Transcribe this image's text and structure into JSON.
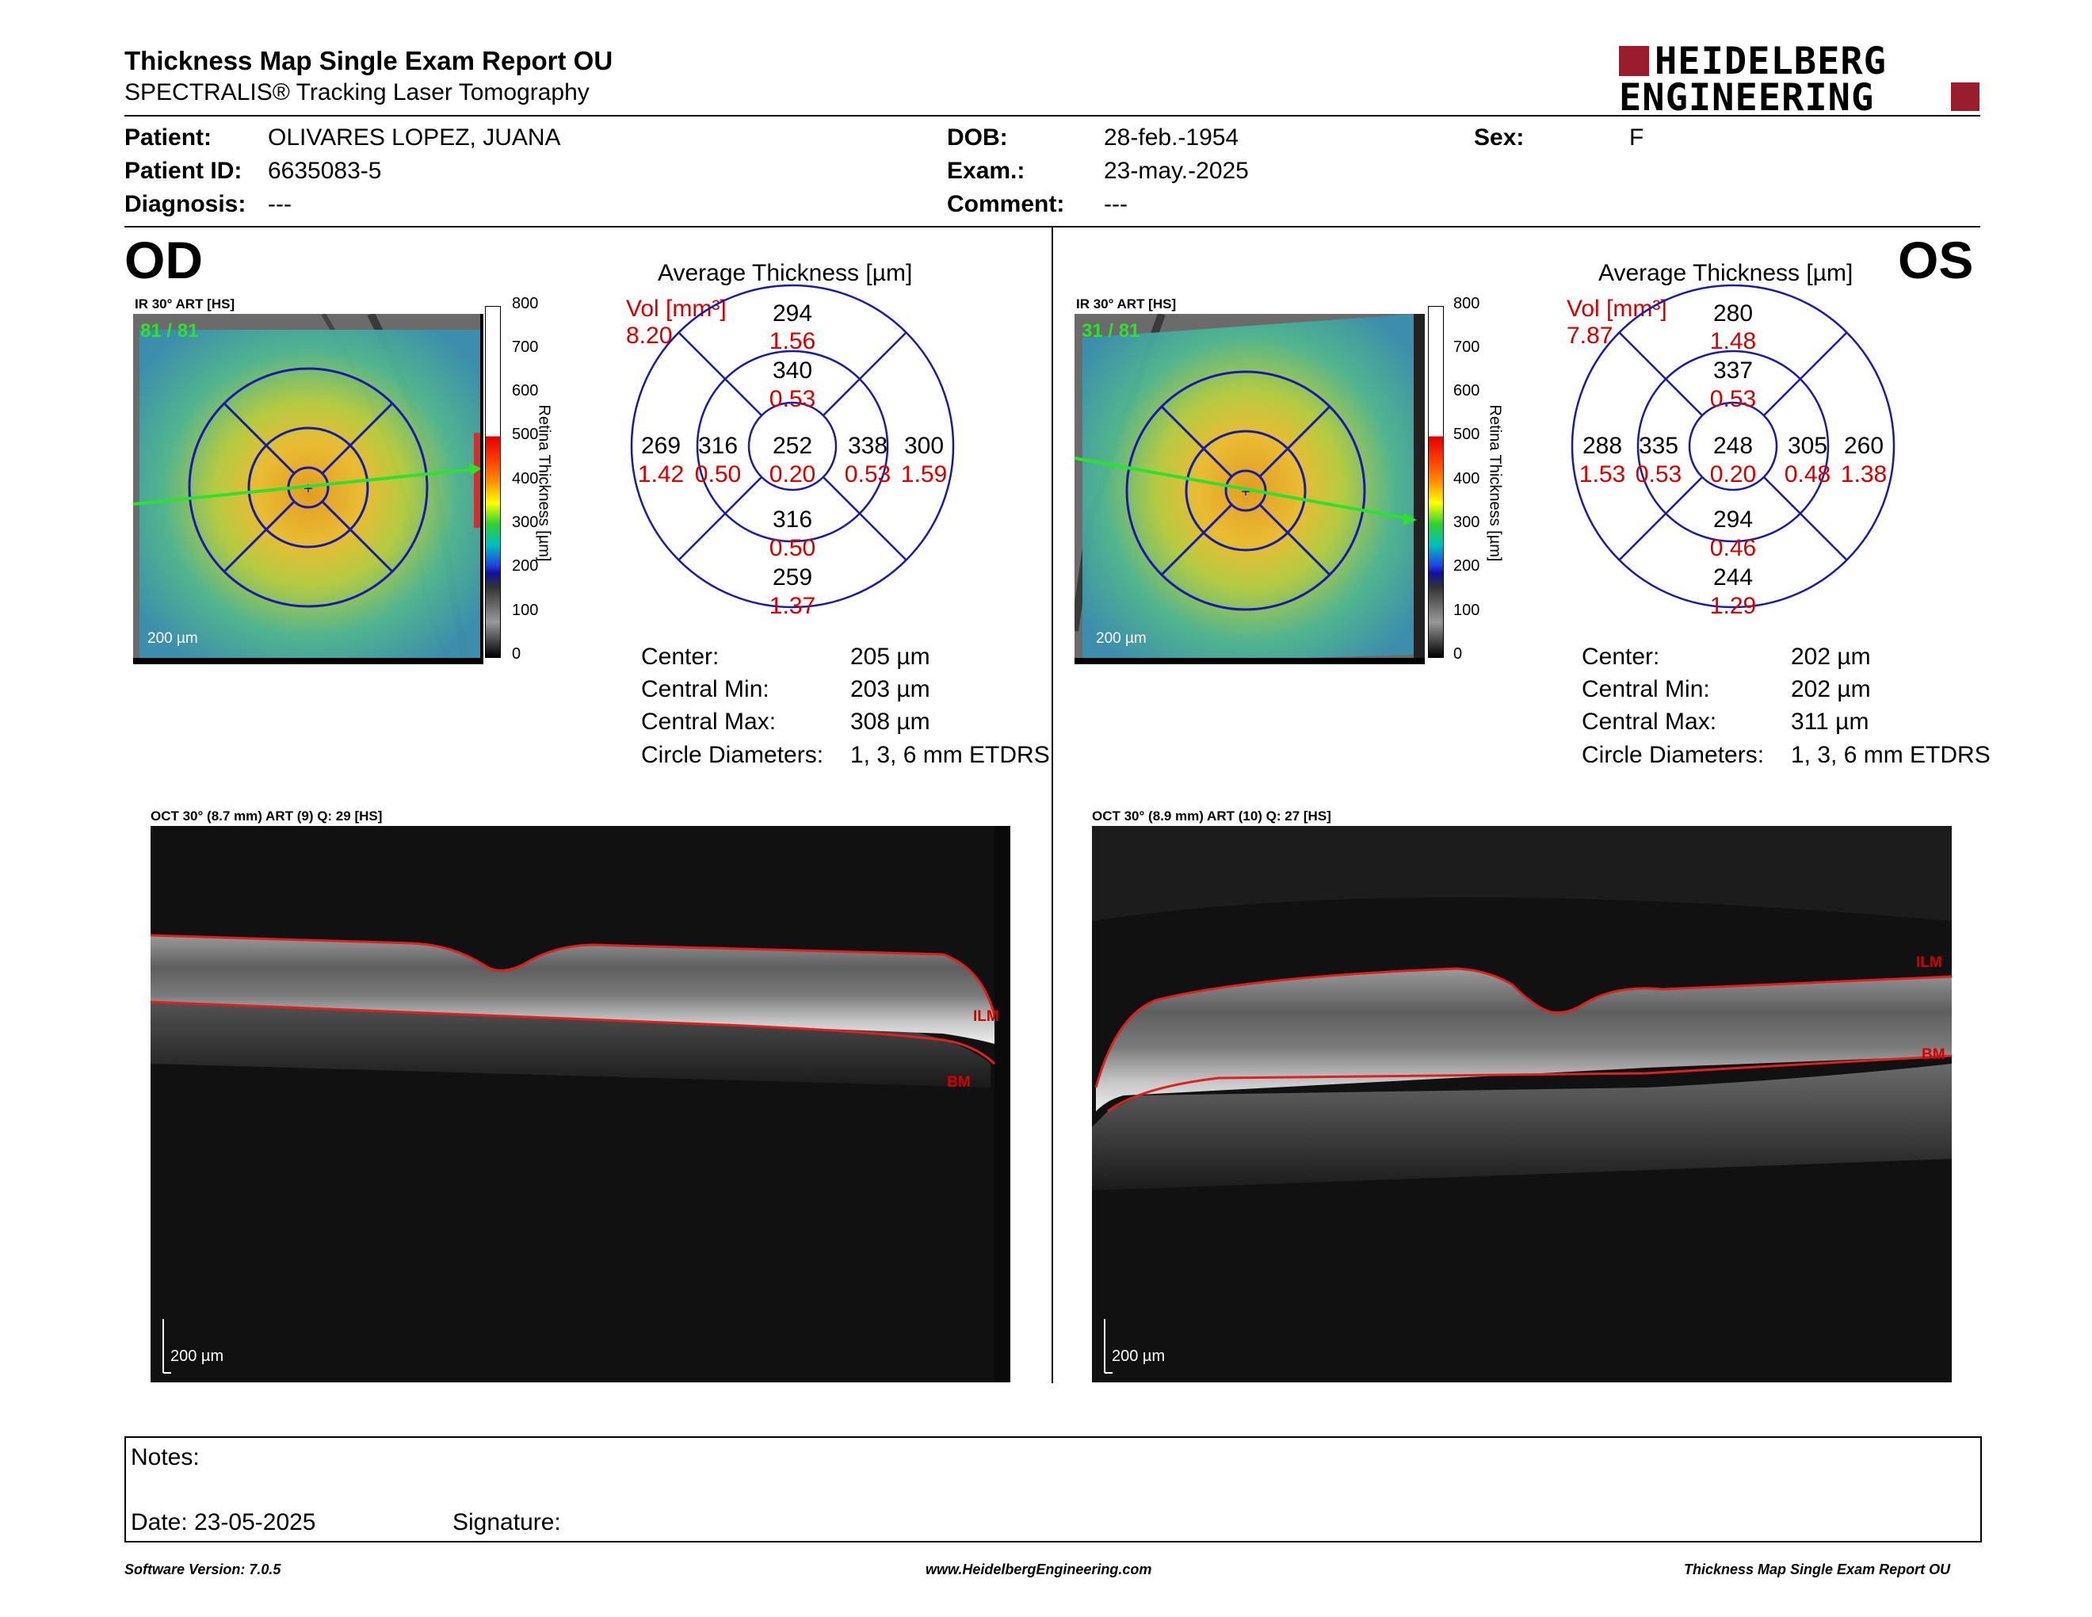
{
  "header": {
    "title": "Thickness Map Single Exam Report OU",
    "subtitle": "SPECTRALIS® Tracking Laser Tomography",
    "logo_line1": "HEIDELBERG",
    "logo_line2": "ENGINEERING"
  },
  "patient": {
    "patient_label": "Patient:",
    "patient_value": "OLIVARES LOPEZ, JUANA",
    "id_label": "Patient ID:",
    "id_value": "6635083-5",
    "diagnosis_label": "Diagnosis:",
    "diagnosis_value": "---",
    "dob_label": "DOB:",
    "dob_value": "28-feb.-1954",
    "exam_label": "Exam.:",
    "exam_value": "23-may.-2025",
    "comment_label": "Comment:",
    "comment_value": "---",
    "sex_label": "Sex:",
    "sex_value": "F"
  },
  "od": {
    "eye": "OD",
    "ir_label": "IR 30° ART [HS]",
    "ir_count": "81 / 81",
    "ir_scale": "200 µm",
    "colorbar_ticks": [
      "800",
      "700",
      "600",
      "500",
      "400",
      "300",
      "200",
      "100",
      "0"
    ],
    "colorbar_label": "Retina Thickness [µm]",
    "avg_title": "Average Thickness [µm]",
    "vol_label": "Vol [mm³]",
    "vol_value": "8.20",
    "grid": {
      "center_t": "252",
      "center_v": "0.20",
      "inner_sup_t": "340",
      "inner_sup_v": "0.53",
      "inner_inf_t": "316",
      "inner_inf_v": "0.50",
      "inner_left_t": "316",
      "inner_left_v": "0.50",
      "inner_right_t": "338",
      "inner_right_v": "0.53",
      "outer_sup_t": "294",
      "outer_sup_v": "1.56",
      "outer_inf_t": "259",
      "outer_inf_v": "1.37",
      "outer_left_t": "269",
      "outer_left_v": "1.42",
      "outer_right_t": "300",
      "outer_right_v": "1.59"
    },
    "stats": {
      "center_label": "Center:",
      "center_value": "205 µm",
      "min_label": "Central Min:",
      "min_value": "203 µm",
      "max_label": "Central Max:",
      "max_value": "308 µm",
      "diam_label": "Circle Diameters:",
      "diam_value": "1, 3, 6 mm ETDRS"
    },
    "oct_label": "OCT 30° (8.7 mm) ART (9) Q: 29 [HS]",
    "oct_scale": "200 µm",
    "ilm": "ILM",
    "bm": "BM"
  },
  "os": {
    "eye": "OS",
    "ir_label": "IR 30° ART [HS]",
    "ir_count": "31 / 81",
    "ir_scale": "200 µm",
    "colorbar_ticks": [
      "800",
      "700",
      "600",
      "500",
      "400",
      "300",
      "200",
      "100",
      "0"
    ],
    "colorbar_label": "Retina Thickness [µm]",
    "avg_title": "Average Thickness [µm]",
    "vol_label": "Vol [mm³]",
    "vol_value": "7.87",
    "grid": {
      "center_t": "248",
      "center_v": "0.20",
      "inner_sup_t": "337",
      "inner_sup_v": "0.53",
      "inner_inf_t": "294",
      "inner_inf_v": "0.46",
      "inner_left_t": "335",
      "inner_left_v": "0.53",
      "inner_right_t": "305",
      "inner_right_v": "0.48",
      "outer_sup_t": "280",
      "outer_sup_v": "1.48",
      "outer_inf_t": "244",
      "outer_inf_v": "1.29",
      "outer_left_t": "288",
      "outer_left_v": "1.53",
      "outer_right_t": "260",
      "outer_right_v": "1.38"
    },
    "stats": {
      "center_label": "Center:",
      "center_value": "202 µm",
      "min_label": "Central Min:",
      "min_value": "202 µm",
      "max_label": "Central Max:",
      "max_value": "311 µm",
      "diam_label": "Circle Diameters:",
      "diam_value": "1, 3, 6 mm ETDRS"
    },
    "oct_label": "OCT 30° (8.9 mm) ART (10) Q: 27 [HS]",
    "oct_scale": "200 µm",
    "ilm": "ILM",
    "bm": "BM"
  },
  "notes": {
    "notes_label": "Notes:",
    "date_label": "Date: 23-05-2025",
    "signature_label": "Signature:"
  },
  "footer": {
    "software": "Software Version: 7.0.5",
    "website": "www.HeidelbergEngineering.com",
    "report": "Thickness Map Single Exam Report OU"
  },
  "colors": {
    "accent_red": "#d40000",
    "grid_blue": "#1a1aa8",
    "logo_red": "#9b1c2c"
  }
}
